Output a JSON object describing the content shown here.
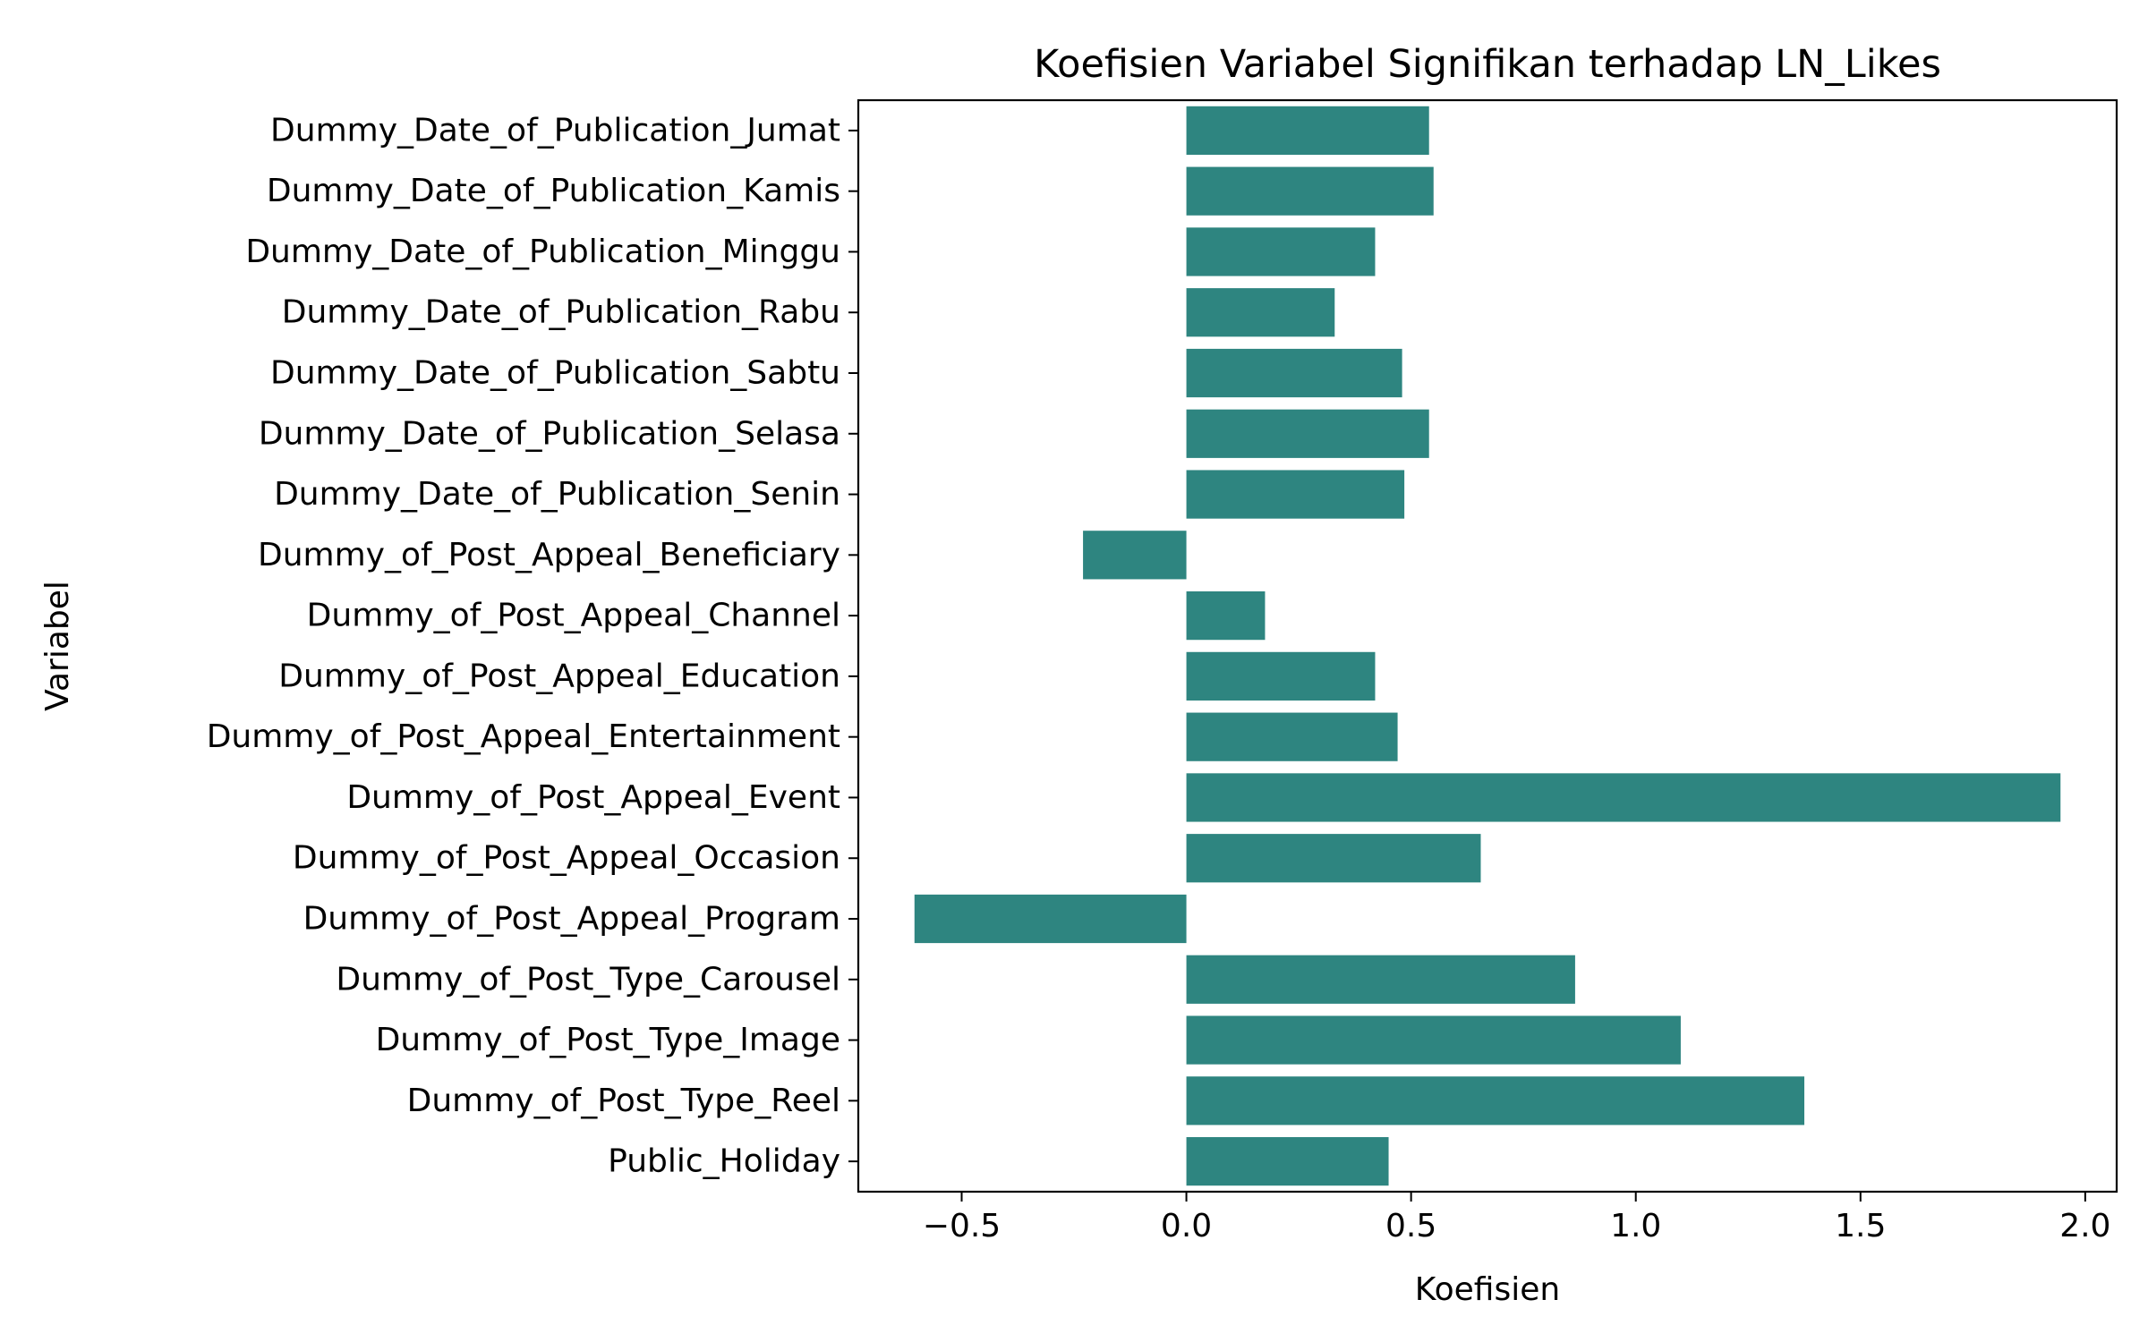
{
  "chart_data": {
    "type": "bar",
    "orientation": "horizontal",
    "title": "Koefisien Variabel Signifikan terhadap LN_Likes",
    "xlabel": "Koefisien",
    "ylabel": "Variabel",
    "xlim": [
      -0.73,
      2.07
    ],
    "xticks": [
      -0.5,
      0.0,
      0.5,
      1.0,
      1.5,
      2.0
    ],
    "xtick_labels": [
      "−0.5",
      "0.0",
      "0.5",
      "1.0",
      "1.5",
      "2.0"
    ],
    "grid": false,
    "bar_color": "#2e8580",
    "categories": [
      "Dummy_Date_of_Publication_Jumat",
      "Dummy_Date_of_Publication_Kamis",
      "Dummy_Date_of_Publication_Minggu",
      "Dummy_Date_of_Publication_Rabu",
      "Dummy_Date_of_Publication_Sabtu",
      "Dummy_Date_of_Publication_Selasa",
      "Dummy_Date_of_Publication_Senin",
      "Dummy_of_Post_Appeal_Beneficiary",
      "Dummy_of_Post_Appeal_Channel",
      "Dummy_of_Post_Appeal_Education",
      "Dummy_of_Post_Appeal_Entertainment",
      "Dummy_of_Post_Appeal_Event",
      "Dummy_of_Post_Appeal_Occasion",
      "Dummy_of_Post_Appeal_Program",
      "Dummy_of_Post_Type_Carousel",
      "Dummy_of_Post_Type_Image",
      "Dummy_of_Post_Type_Reel",
      "Public_Holiday"
    ],
    "values": [
      0.54,
      0.55,
      0.42,
      0.33,
      0.48,
      0.54,
      0.485,
      -0.23,
      0.175,
      0.42,
      0.47,
      1.945,
      0.655,
      -0.605,
      0.865,
      1.1,
      1.375,
      0.45
    ]
  }
}
